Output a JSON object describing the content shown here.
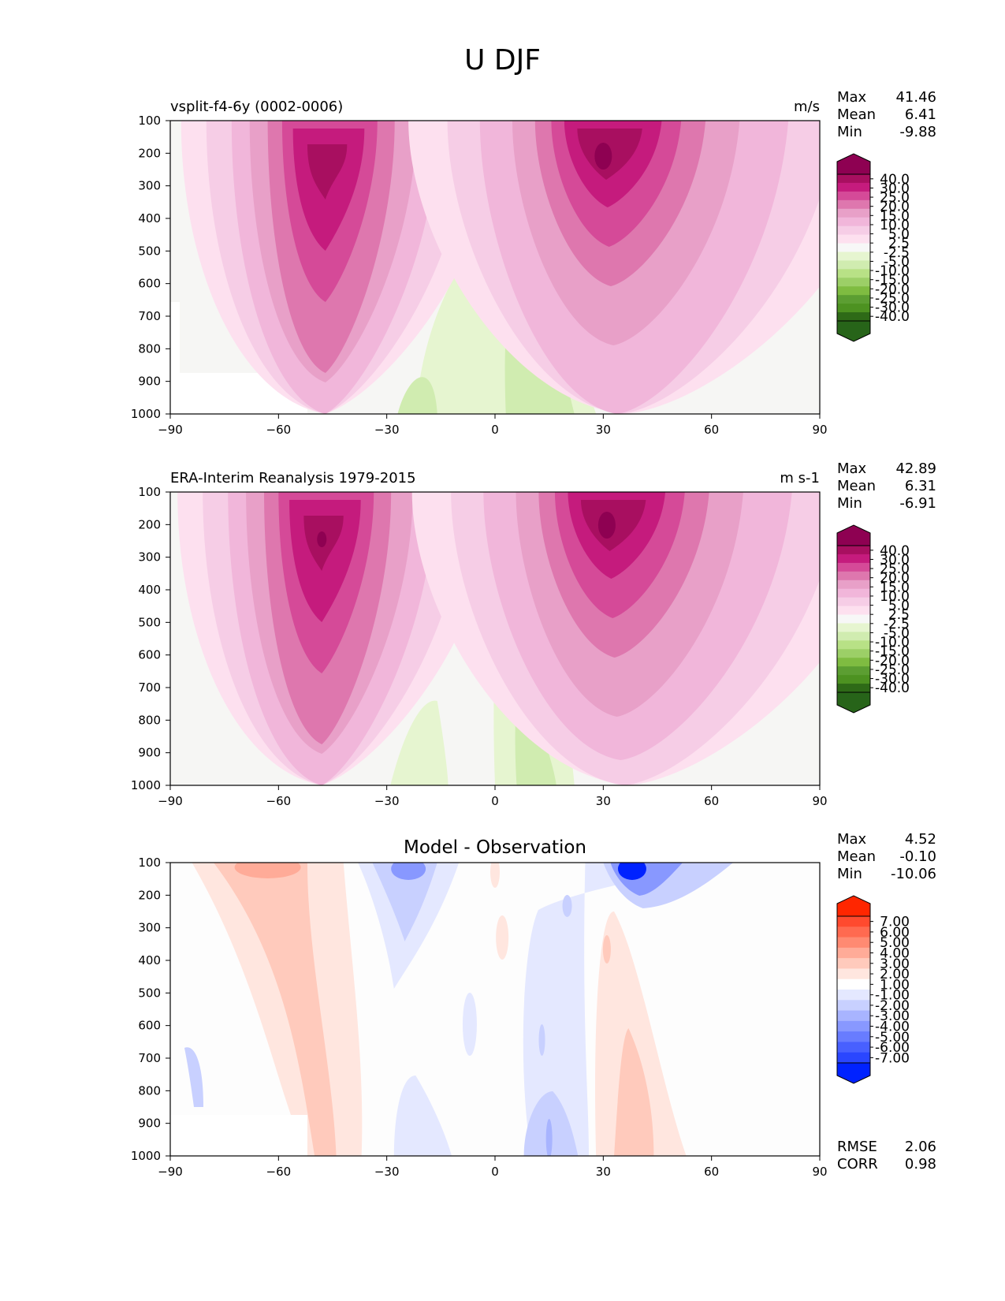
{
  "figure": {
    "title": "U DJF"
  },
  "axes": {
    "x_ticks": [
      "−90",
      "−60",
      "−30",
      "0",
      "30",
      "60",
      "90"
    ],
    "y_ticks": [
      "100",
      "200",
      "300",
      "400",
      "500",
      "600",
      "700",
      "800",
      "900",
      "1000"
    ]
  },
  "panels": [
    {
      "title_left": "vsplit-f4-6y (0002-0006)",
      "title_center": "",
      "units": "m/s",
      "stats": [
        {
          "label": "Max",
          "value": "41.46"
        },
        {
          "label": "Mean",
          "value": "6.41"
        },
        {
          "label": "Min",
          "value": "-9.88"
        }
      ],
      "footer_stats": []
    },
    {
      "title_left": "ERA-Interim Reanalysis 1979-2015",
      "title_center": "",
      "units": "m s-1",
      "stats": [
        {
          "label": "Max",
          "value": "42.89"
        },
        {
          "label": "Mean",
          "value": "6.31"
        },
        {
          "label": "Min",
          "value": "-6.91"
        }
      ],
      "footer_stats": []
    },
    {
      "title_left": "",
      "title_center": "Model - Observation",
      "units": "",
      "stats": [
        {
          "label": "Max",
          "value": "4.52"
        },
        {
          "label": "Mean",
          "value": "-0.10"
        },
        {
          "label": "Min",
          "value": "-10.06"
        }
      ],
      "footer_stats": [
        {
          "label": "RMSE",
          "value": "2.06"
        },
        {
          "label": "CORR",
          "value": "0.98"
        }
      ]
    }
  ],
  "colorbars": {
    "field": {
      "labels": [
        "40.0",
        "30.0",
        "25.0",
        "20.0",
        "15.0",
        "10.0",
        "5.0",
        "2.5",
        "-2.5",
        "-5.0",
        "-10.0",
        "-15.0",
        "-20.0",
        "-25.0",
        "-30.0",
        "-40.0"
      ],
      "colors": [
        "#8e0152",
        "#a80f60",
        "#c51b7d",
        "#d54a98",
        "#de77ae",
        "#e8a0c8",
        "#f1b6da",
        "#f6cde6",
        "#fde0ef",
        "#f7f7f7",
        "#e6f5d0",
        "#d0ecb0",
        "#b8e186",
        "#9ccf67",
        "#7fbc41",
        "#5c9e32",
        "#4d9221",
        "#2e6a17",
        "#276419"
      ]
    },
    "diff": {
      "labels": [
        "7.00",
        "6.00",
        "5.00",
        "4.00",
        "3.00",
        "2.00",
        "1.00",
        "-1.00",
        "-2.00",
        "-3.00",
        "-4.00",
        "-5.00",
        "-6.00",
        "-7.00"
      ],
      "colors": [
        "#ff2600",
        "#ff4a2e",
        "#ff6a50",
        "#ff8a72",
        "#ffab98",
        "#ffcabc",
        "#ffe6df",
        "#ffffff",
        "#e4e8ff",
        "#c8d0ff",
        "#a8b4ff",
        "#8898ff",
        "#687cff",
        "#4860ff",
        "#2a46ff",
        "#0022ff"
      ]
    }
  },
  "chart_data": [
    {
      "type": "heatmap",
      "title": "vsplit-f4-6y (0002-0006)",
      "units": "m/s",
      "x": [
        -90,
        -60,
        -30,
        0,
        30,
        60,
        90
      ],
      "y": [
        100,
        200,
        300,
        400,
        500,
        600,
        700,
        800,
        900,
        1000
      ],
      "xlim": [
        -90,
        90
      ],
      "ylim": [
        1000,
        100
      ],
      "stats": {
        "max": 41.46,
        "mean": 6.41,
        "min": -9.88
      },
      "jet_maxima": [
        {
          "lat": -48,
          "plev": 250,
          "value": 35
        },
        {
          "lat": 30,
          "plev": 200,
          "value": 41.46
        }
      ]
    },
    {
      "type": "heatmap",
      "title": "ERA-Interim Reanalysis 1979-2015",
      "units": "m s-1",
      "x": [
        -90,
        -60,
        -30,
        0,
        30,
        60,
        90
      ],
      "y": [
        100,
        200,
        300,
        400,
        500,
        600,
        700,
        800,
        900,
        1000
      ],
      "xlim": [
        -90,
        90
      ],
      "ylim": [
        1000,
        100
      ],
      "stats": {
        "max": 42.89,
        "mean": 6.31,
        "min": -6.91
      },
      "jet_maxima": [
        {
          "lat": -49,
          "plev": 250,
          "value": 35
        },
        {
          "lat": 31,
          "plev": 200,
          "value": 42.89
        }
      ]
    },
    {
      "type": "heatmap",
      "title": "Model - Observation",
      "x": [
        -90,
        -60,
        -30,
        0,
        30,
        60,
        90
      ],
      "y": [
        100,
        200,
        300,
        400,
        500,
        600,
        700,
        800,
        900,
        1000
      ],
      "xlim": [
        -90,
        90
      ],
      "ylim": [
        1000,
        100
      ],
      "stats": {
        "max": 4.52,
        "mean": -0.1,
        "min": -10.06,
        "rmse": 2.06,
        "corr": 0.98
      }
    }
  ]
}
